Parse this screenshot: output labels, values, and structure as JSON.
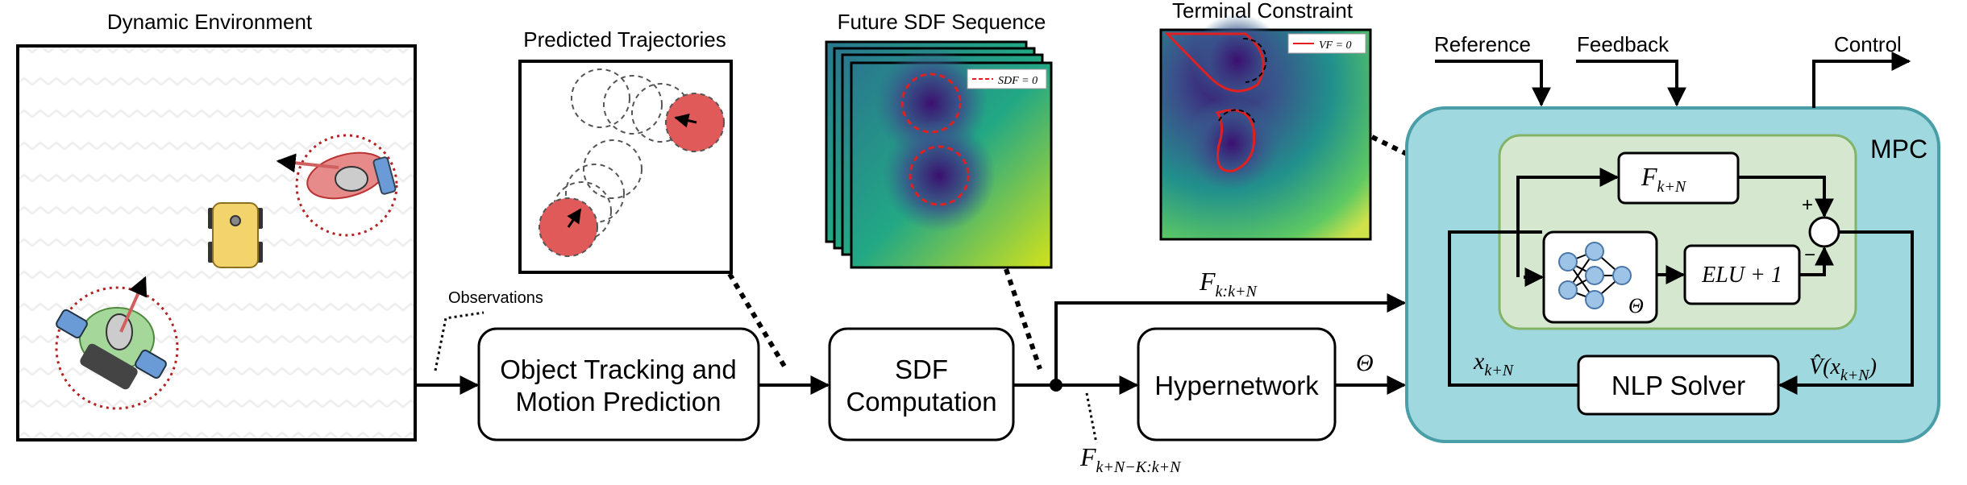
{
  "panels": {
    "dynamic_environment": "Dynamic Environment",
    "predicted_trajectories": "Predicted Trajectories",
    "future_sdf_sequence": "Future SDF Sequence",
    "terminal_constraint": "Terminal Constraint"
  },
  "legends": {
    "sdf_zero": "SDF = 0",
    "vf_zero": "VF = 0"
  },
  "annotations": {
    "observations": "Observations",
    "theta_edge": "Θ",
    "theta_net": "Θ",
    "plus": "+",
    "minus": "−"
  },
  "blocks": {
    "tracking_line1": "Object Tracking and",
    "tracking_line2": "Motion Prediction",
    "sdf_line1": "SDF",
    "sdf_line2": "Computation",
    "hypernetwork": "Hypernetwork",
    "nlp_solver": "NLP Solver",
    "mpc": "MPC",
    "elu": "ELU + 1"
  },
  "signals": {
    "reference": "Reference",
    "feedback": "Feedback",
    "control": "Control"
  },
  "math_labels": {
    "f_window": {
      "base": "F",
      "sub": "k:k+N"
    },
    "f_history": {
      "base": "F",
      "sub": "k+N−K:k+N"
    },
    "x_terminal": {
      "base": "x",
      "sub": "k+N"
    },
    "f_terminal": {
      "base": "F",
      "sub": "k+N"
    },
    "v_hat": {
      "base": "V̂(x",
      "sub": "k+N",
      "tail": ")"
    }
  },
  "colors": {
    "mpc_fill": "#9fd8df",
    "mpc_stroke": "#4a9ea8",
    "inner_fill": "#d5e8cf",
    "inner_stroke": "#82b366",
    "obstacle_red": "#e05a5a",
    "sdf_dark": "#3b0f6f",
    "sdf_mid": "#21918c",
    "sdf_light": "#cfe24a",
    "robot_yellow": "#f3d36b"
  }
}
